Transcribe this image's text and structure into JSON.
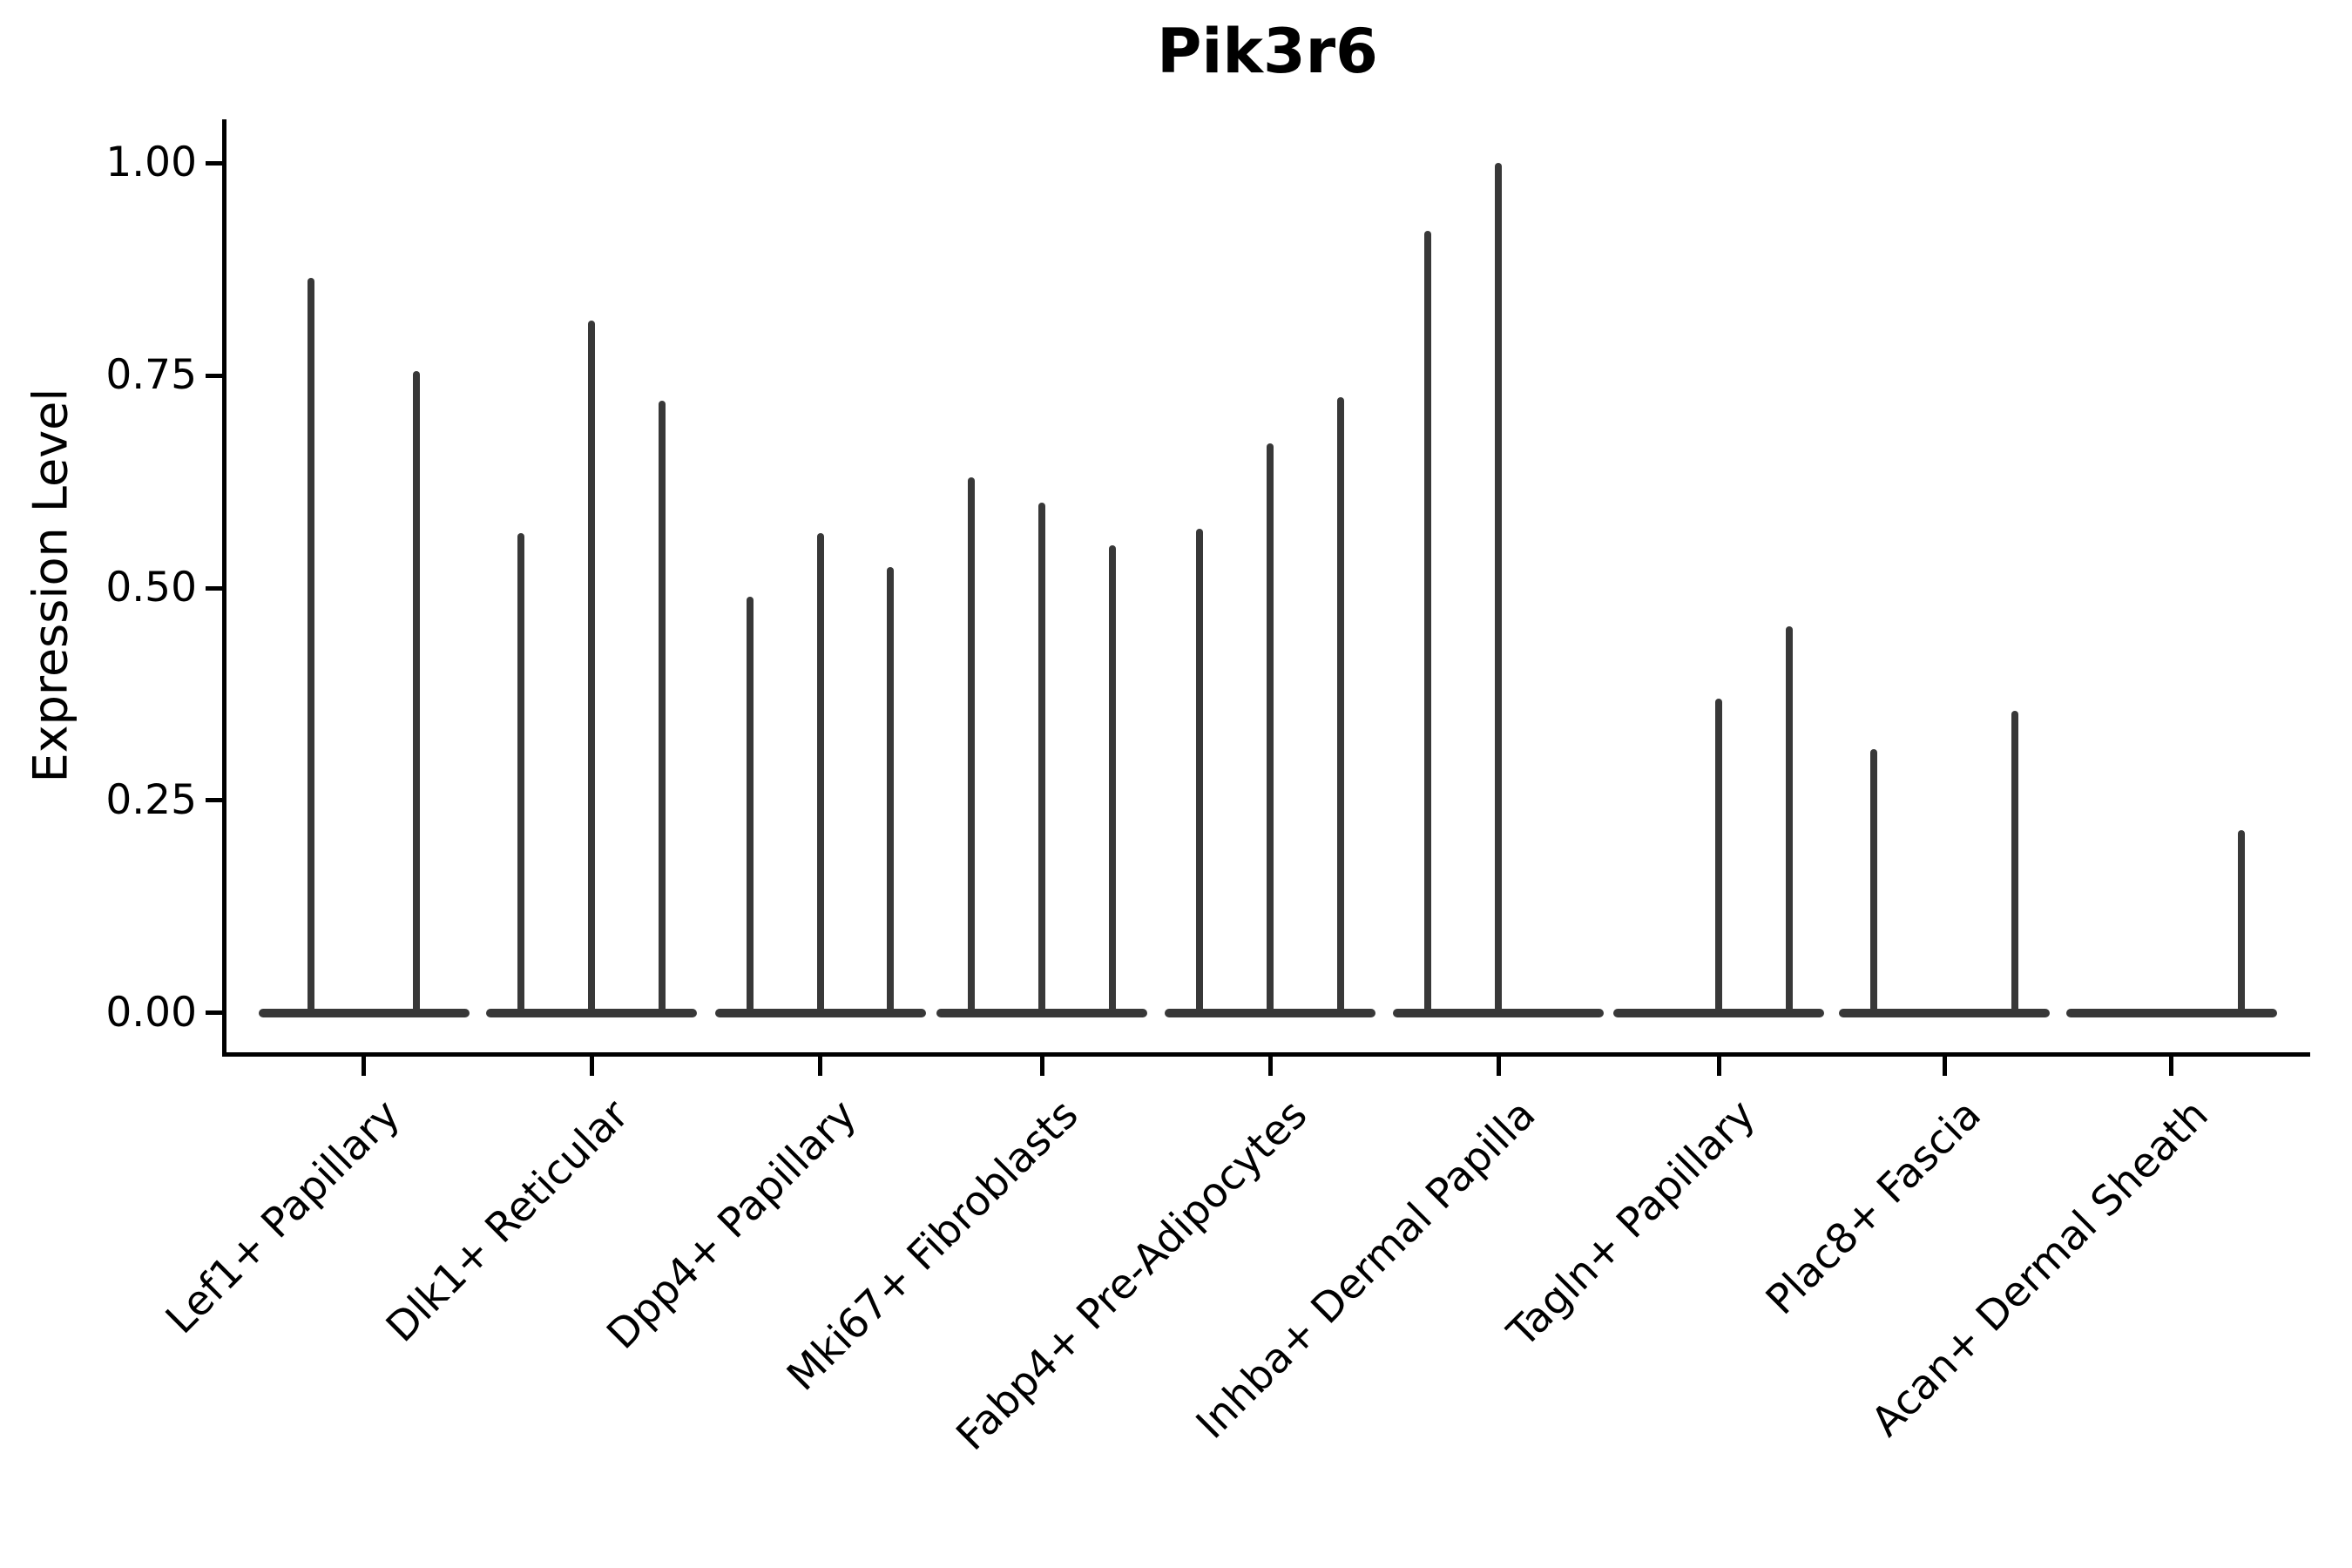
{
  "title": "Pik3r6",
  "y_axis": {
    "label": "Expression Level",
    "ticks": [
      {
        "label": "0.00",
        "value": 0.0
      },
      {
        "label": "0.25",
        "value": 0.25
      },
      {
        "label": "0.50",
        "value": 0.5
      },
      {
        "label": "0.75",
        "value": 0.75
      },
      {
        "label": "1.00",
        "value": 1.0
      }
    ]
  },
  "chart_data": {
    "type": "violin",
    "title": "Pik3r6",
    "xlabel": "",
    "ylabel": "Expression Level",
    "ylim": [
      -0.05,
      1.05
    ],
    "grid": false,
    "legend_position": "none",
    "shape_note": "Each violin is a thin vertical spike reaching its max expression value, with a flat wide density blob at 0; violins with max 0 are flat lines only.",
    "categories": [
      "Lef1+ Papillary",
      "Dlk1+ Reticular",
      "Dpp4+ Papillary",
      "Mki67+ Fibroblasts",
      "Fabp4+ Pre-Adipocytes",
      "Inhba+ Dermal Papilla",
      "Tagln+ Papillary",
      "Plac8+ Fascia",
      "Acan+ Dermal Sheath"
    ],
    "groups": [
      {
        "category": "Lef1+ Papillary",
        "violin_max_values": [
          0.865,
          0.755
        ]
      },
      {
        "category": "Dlk1+ Reticular",
        "violin_max_values": [
          0.565,
          0.815,
          0.72
        ]
      },
      {
        "category": "Dpp4+ Papillary",
        "violin_max_values": [
          0.49,
          0.565,
          0.525
        ]
      },
      {
        "category": "Mki67+ Fibroblasts",
        "violin_max_values": [
          0.63,
          0.6,
          0.55
        ]
      },
      {
        "category": "Fabp4+ Pre-Adipocytes",
        "violin_max_values": [
          0.57,
          0.67,
          0.725
        ]
      },
      {
        "category": "Inhba+ Dermal Papilla",
        "violin_max_values": [
          0.92,
          1.0,
          0
        ]
      },
      {
        "category": "Tagln+ Papillary",
        "violin_max_values": [
          0,
          0.37,
          0.455
        ]
      },
      {
        "category": "Plac8+ Fascia",
        "violin_max_values": [
          0.31,
          0,
          0.355
        ]
      },
      {
        "category": "Acan+ Dermal Sheath",
        "violin_max_values": [
          0,
          0,
          0.215
        ]
      }
    ]
  },
  "style": {
    "violin_color": "#383838",
    "axis_color": "#000000",
    "text_color": "#000000",
    "background": "#ffffff"
  }
}
